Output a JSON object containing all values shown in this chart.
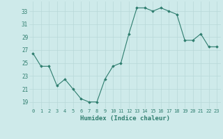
{
  "x": [
    0,
    1,
    2,
    3,
    4,
    5,
    6,
    7,
    8,
    9,
    10,
    11,
    12,
    13,
    14,
    15,
    16,
    17,
    18,
    19,
    20,
    21,
    22,
    23
  ],
  "y": [
    26.5,
    24.5,
    24.5,
    21.5,
    22.5,
    21.0,
    19.5,
    19.0,
    19.0,
    22.5,
    24.5,
    25.0,
    29.5,
    33.5,
    33.5,
    33.0,
    33.5,
    33.0,
    32.5,
    28.5,
    28.5,
    29.5,
    27.5,
    27.5
  ],
  "line_color": "#2e7d6e",
  "marker_color": "#2e7d6e",
  "bg_color": "#ceeaea",
  "grid_color": "#b8d8d8",
  "xlabel": "Humidex (Indice chaleur)",
  "ylabel_ticks": [
    19,
    21,
    23,
    25,
    27,
    29,
    31,
    33
  ],
  "xlim": [
    -0.5,
    23.5
  ],
  "ylim": [
    18.0,
    34.5
  ],
  "xtick_labels": [
    "0",
    "1",
    "2",
    "3",
    "4",
    "5",
    "6",
    "7",
    "8",
    "9",
    "10",
    "11",
    "12",
    "13",
    "14",
    "15",
    "16",
    "17",
    "18",
    "19",
    "20",
    "21",
    "22",
    "23"
  ]
}
